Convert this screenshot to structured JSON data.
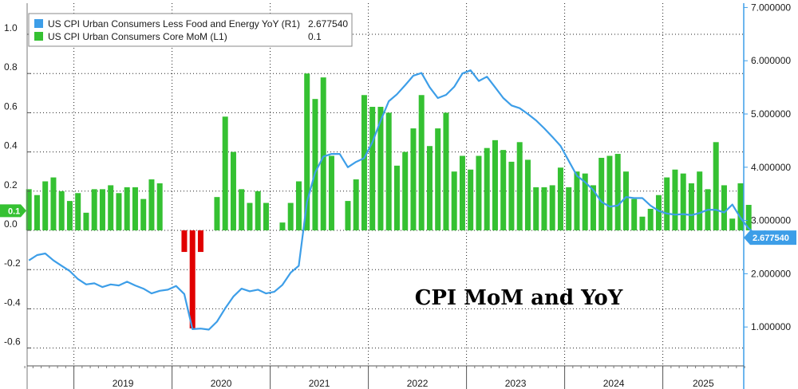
{
  "chart_data": {
    "type": "bar+line",
    "title": "",
    "annotation": "CPI MoM and YoY",
    "x_ticks": [
      "2019",
      "2020",
      "2021",
      "2022",
      "2023",
      "2024",
      "2025"
    ],
    "left_axis": {
      "ylim": [
        -0.65,
        1.12
      ],
      "ticks": [
        "1.0",
        "0.8",
        "0.6",
        "0.4",
        "0.2",
        "0.0",
        "-0.2",
        "-0.4",
        "-0.6"
      ],
      "tick_values": [
        1.0,
        0.8,
        0.6,
        0.4,
        0.2,
        0.0,
        -0.2,
        -0.4,
        -0.6
      ]
    },
    "right_axis": {
      "ylim": [
        0.6,
        7.2
      ],
      "ticks": [
        "7.000000",
        "6.000000",
        "5.000000",
        "4.000000",
        "3.000000",
        "2.000000",
        "1.000000"
      ],
      "tick_values": [
        7,
        6,
        5,
        4,
        3,
        2,
        1
      ]
    },
    "legend": {
      "placement": "top-left",
      "entries": [
        {
          "label": "US CPI Urban Consumers Less Food and Energy YoY (R1)",
          "value": "2.677540",
          "color": "#3d9ee8"
        },
        {
          "label": "US CPI Urban Consumers Core MoM (L1)",
          "value": "0.1",
          "color": "#35c132"
        }
      ]
    },
    "badges": {
      "left": {
        "text": "0.1",
        "value": 0.1,
        "color": "#35c132"
      },
      "right": {
        "text": "2.677540",
        "value": 2.67754,
        "color": "#3d9ee8"
      }
    },
    "colors": {
      "positive_bar": "#35c132",
      "negative_bar": "#e00000",
      "line": "#3d9ee8",
      "grid": "#222222"
    },
    "series": [
      {
        "name": "US CPI Urban Consumers Core MoM (L1)",
        "kind": "bar",
        "start_month": "2018-07",
        "values": [
          0.21,
          0.18,
          0.25,
          0.27,
          0.2,
          0.15,
          0.19,
          0.09,
          0.21,
          0.21,
          0.23,
          0.19,
          0.22,
          0.22,
          0.16,
          0.26,
          0.24,
          0.0,
          0.0,
          -0.11,
          -0.5,
          -0.11,
          0.0,
          0.17,
          0.58,
          0.4,
          0.21,
          0.14,
          0.2,
          0.14,
          0.0,
          0.04,
          0.14,
          0.25,
          0.8,
          0.67,
          0.78,
          0.38,
          0.0,
          0.15,
          0.26,
          0.69,
          0.63,
          0.63,
          0.6,
          0.33,
          0.4,
          0.52,
          0.69,
          0.43,
          0.52,
          0.6,
          0.3,
          0.38,
          0.31,
          0.38,
          0.42,
          0.46,
          0.41,
          0.35,
          0.45,
          0.36,
          0.22,
          0.22,
          0.23,
          0.32,
          0.22,
          0.3,
          0.29,
          0.23,
          0.37,
          0.38,
          0.39,
          0.3,
          0.16,
          0.07,
          0.11,
          0.18,
          0.27,
          0.31,
          0.29,
          0.24,
          0.3,
          0.21,
          0.45,
          0.23,
          0.06,
          0.24,
          0.13
        ]
      },
      {
        "name": "US CPI Urban Consumers Less Food and Energy YoY (R1)",
        "kind": "line",
        "start_month": "2018-07",
        "values": [
          2.25,
          2.35,
          2.38,
          2.25,
          2.15,
          2.05,
          1.9,
          1.8,
          1.82,
          1.75,
          1.8,
          1.78,
          1.85,
          1.78,
          1.72,
          1.63,
          1.68,
          1.7,
          1.77,
          1.62,
          0.96,
          0.97,
          0.95,
          1.1,
          1.35,
          1.57,
          1.72,
          1.67,
          1.7,
          1.63,
          1.66,
          1.79,
          2.02,
          2.15,
          3.35,
          3.9,
          4.2,
          4.25,
          4.25,
          4.0,
          4.1,
          4.17,
          4.47,
          4.87,
          5.24,
          5.37,
          5.54,
          5.72,
          5.77,
          5.5,
          5.3,
          5.36,
          5.51,
          5.76,
          5.82,
          5.62,
          5.7,
          5.5,
          5.3,
          5.16,
          5.11,
          5.0,
          4.88,
          4.73,
          4.57,
          4.4,
          4.12,
          3.84,
          3.72,
          3.57,
          3.35,
          3.26,
          3.28,
          3.44,
          3.42,
          3.42,
          3.28,
          3.18,
          3.13,
          3.11,
          3.12,
          3.1,
          3.14,
          3.2,
          3.2,
          3.15,
          3.3,
          3.05,
          2.85,
          2.72,
          2.8,
          2.68
        ]
      }
    ]
  }
}
